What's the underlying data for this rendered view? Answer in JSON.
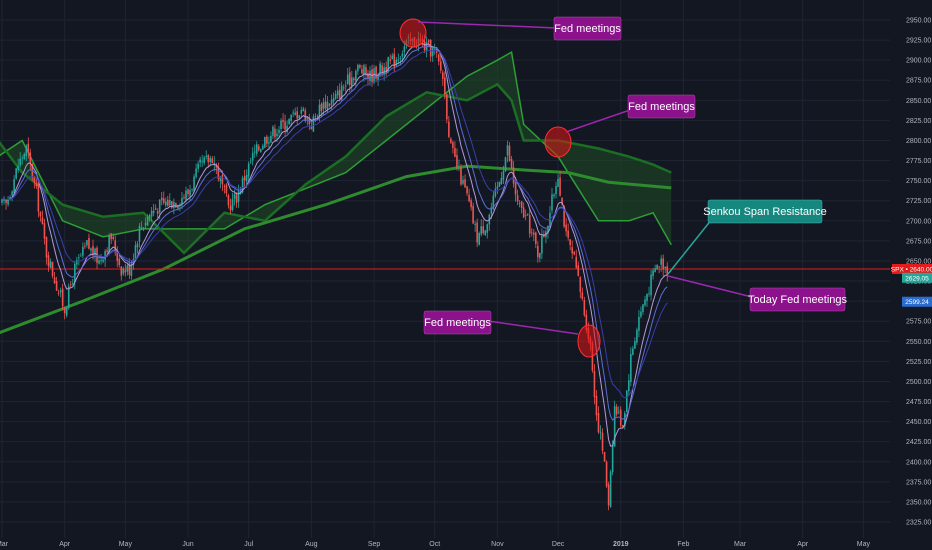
{
  "chart_data": {
    "type": "candlestick",
    "symbol": "SPX",
    "y_axis": {
      "min": 2325,
      "max": 2950,
      "position": "right",
      "ticks": [
        2325,
        2350,
        2375,
        2400,
        2425,
        2450,
        2475,
        2500,
        2525,
        2550,
        2575,
        2600,
        2625,
        2650,
        2675,
        2700,
        2725,
        2750,
        2775,
        2800,
        2825,
        2850,
        2875,
        2900,
        2925,
        2950
      ],
      "tick_labels": [
        "2325.00",
        "2350.00",
        "2375.00",
        "2400.00",
        "2425.00",
        "2450.00",
        "2475.00",
        "2500.00",
        "2525.00",
        "2550.00",
        "2575.00",
        "2600.00",
        "2625.00",
        "2650.00",
        "2675.00",
        "2700.00",
        "2725.00",
        "2750.00",
        "2775.00",
        "2800.00",
        "2825.00",
        "2850.00",
        "2875.00",
        "2900.00",
        "2925.00",
        "2950.00"
      ]
    },
    "x_axis": {
      "labels": [
        "Mar",
        "Apr",
        "May",
        "Jun",
        "Jul",
        "Aug",
        "Sep",
        "Oct",
        "Nov",
        "Dec",
        "2019",
        "Feb",
        "Mar",
        "Apr",
        "May"
      ],
      "label_days": [
        0,
        31,
        61,
        92,
        122,
        153,
        184,
        214,
        245,
        275,
        306,
        337,
        365,
        396,
        426
      ]
    },
    "grid": true,
    "price_tags": [
      {
        "label": "SPX • 2640.00",
        "value": 2640,
        "color": "#e31b1b"
      },
      {
        "label": "2629.05",
        "value": 2629.05,
        "color": "#26a69a"
      },
      {
        "label": "2599.24",
        "value": 2599.24,
        "color": "#2a6ccf"
      }
    ],
    "horizontal_line": {
      "value": 2640,
      "color": "#e31b1b"
    },
    "closes": [
      {
        "day": 2,
        "close": 2720
      },
      {
        "day": 8,
        "close": 2770
      },
      {
        "day": 12,
        "close": 2790
      },
      {
        "day": 17,
        "close": 2735
      },
      {
        "day": 22,
        "close": 2660
      },
      {
        "day": 27,
        "close": 2620
      },
      {
        "day": 31,
        "close": 2590
      },
      {
        "day": 36,
        "close": 2640
      },
      {
        "day": 42,
        "close": 2670
      },
      {
        "day": 48,
        "close": 2650
      },
      {
        "day": 54,
        "close": 2680
      },
      {
        "day": 59,
        "close": 2640
      },
      {
        "day": 63,
        "close": 2640
      },
      {
        "day": 68,
        "close": 2690
      },
      {
        "day": 74,
        "close": 2712
      },
      {
        "day": 80,
        "close": 2722
      },
      {
        "day": 86,
        "close": 2725
      },
      {
        "day": 92,
        "close": 2735
      },
      {
        "day": 98,
        "close": 2768
      },
      {
        "day": 104,
        "close": 2780
      },
      {
        "day": 108,
        "close": 2750
      },
      {
        "day": 112,
        "close": 2718
      },
      {
        "day": 116,
        "close": 2730
      },
      {
        "day": 120,
        "close": 2755
      },
      {
        "day": 124,
        "close": 2780
      },
      {
        "day": 130,
        "close": 2802
      },
      {
        "day": 136,
        "close": 2815
      },
      {
        "day": 142,
        "close": 2825
      },
      {
        "day": 148,
        "close": 2840
      },
      {
        "day": 153,
        "close": 2820
      },
      {
        "day": 158,
        "close": 2845
      },
      {
        "day": 164,
        "close": 2850
      },
      {
        "day": 170,
        "close": 2870
      },
      {
        "day": 176,
        "close": 2890
      },
      {
        "day": 182,
        "close": 2880
      },
      {
        "day": 188,
        "close": 2890
      },
      {
        "day": 194,
        "close": 2900
      },
      {
        "day": 200,
        "close": 2920
      },
      {
        "day": 206,
        "close": 2925
      },
      {
        "day": 210,
        "close": 2915
      },
      {
        "day": 214,
        "close": 2910
      },
      {
        "day": 218,
        "close": 2880
      },
      {
        "day": 222,
        "close": 2790
      },
      {
        "day": 226,
        "close": 2760
      },
      {
        "day": 230,
        "close": 2730
      },
      {
        "day": 235,
        "close": 2680
      },
      {
        "day": 240,
        "close": 2700
      },
      {
        "day": 245,
        "close": 2740
      },
      {
        "day": 250,
        "close": 2790
      },
      {
        "day": 255,
        "close": 2720
      },
      {
        "day": 260,
        "close": 2700
      },
      {
        "day": 265,
        "close": 2660
      },
      {
        "day": 270,
        "close": 2700
      },
      {
        "day": 275,
        "close": 2760
      },
      {
        "day": 279,
        "close": 2680
      },
      {
        "day": 283,
        "close": 2650
      },
      {
        "day": 287,
        "close": 2600
      },
      {
        "day": 291,
        "close": 2545
      },
      {
        "day": 294,
        "close": 2460
      },
      {
        "day": 297,
        "close": 2416
      },
      {
        "day": 300,
        "close": 2351
      },
      {
        "day": 303,
        "close": 2468
      },
      {
        "day": 307,
        "close": 2447
      },
      {
        "day": 311,
        "close": 2530
      },
      {
        "day": 315,
        "close": 2580
      },
      {
        "day": 319,
        "close": 2610
      },
      {
        "day": 323,
        "close": 2640
      },
      {
        "day": 326,
        "close": 2650
      },
      {
        "day": 329,
        "close": 2640
      }
    ],
    "moving_average_200": [
      {
        "day": -2,
        "value": 2560
      },
      {
        "day": 40,
        "value": 2600
      },
      {
        "day": 80,
        "value": 2640
      },
      {
        "day": 120,
        "value": 2690
      },
      {
        "day": 160,
        "value": 2720
      },
      {
        "day": 200,
        "value": 2755
      },
      {
        "day": 230,
        "value": 2768
      },
      {
        "day": 260,
        "value": 2763
      },
      {
        "day": 280,
        "value": 2760
      },
      {
        "day": 300,
        "value": 2748
      },
      {
        "day": 331,
        "value": 2741
      }
    ],
    "senkou_span": [
      {
        "day": -2,
        "a": 2780,
        "b": 2800
      },
      {
        "day": 10,
        "a": 2800,
        "b": 2760
      },
      {
        "day": 30,
        "a": 2700,
        "b": 2720
      },
      {
        "day": 50,
        "a": 2680,
        "b": 2705
      },
      {
        "day": 70,
        "a": 2690,
        "b": 2710
      },
      {
        "day": 90,
        "a": 2690,
        "b": 2660
      },
      {
        "day": 110,
        "a": 2690,
        "b": 2710
      },
      {
        "day": 130,
        "a": 2720,
        "b": 2700
      },
      {
        "day": 150,
        "a": 2740,
        "b": 2745
      },
      {
        "day": 170,
        "a": 2760,
        "b": 2780
      },
      {
        "day": 190,
        "a": 2800,
        "b": 2830
      },
      {
        "day": 210,
        "a": 2840,
        "b": 2860
      },
      {
        "day": 230,
        "a": 2880,
        "b": 2850
      },
      {
        "day": 245,
        "a": 2900,
        "b": 2870
      },
      {
        "day": 252,
        "a": 2910,
        "b": 2850
      },
      {
        "day": 258,
        "a": 2820,
        "b": 2800
      },
      {
        "day": 275,
        "a": 2780,
        "b": 2800
      },
      {
        "day": 295,
        "a": 2700,
        "b": 2790
      },
      {
        "day": 310,
        "a": 2700,
        "b": 2780
      },
      {
        "day": 322,
        "a": 2710,
        "b": 2770
      },
      {
        "day": 331,
        "a": 2670,
        "b": 2760
      }
    ],
    "annotations": [
      {
        "text": "Fed meetings",
        "color": "#8b128b"
      },
      {
        "text": "Fed meetings",
        "color": "#8b128b"
      },
      {
        "text": "Fed meetings",
        "color": "#8b128b"
      },
      {
        "text": "Senkou Span Resistance",
        "color": "#16877f"
      },
      {
        "text": "Today Fed meetings",
        "color": "#8b128b"
      }
    ]
  }
}
